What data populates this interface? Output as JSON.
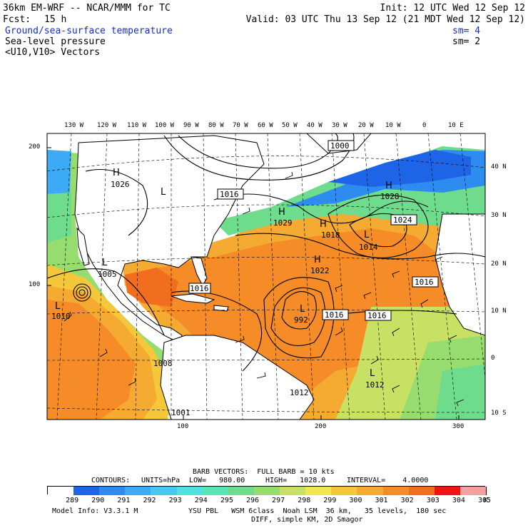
{
  "header": {
    "model": "36km EM-WRF -- NCAR/MMM for TC",
    "init": "Init: 12 UTC Wed 12 Sep 12",
    "fcst_label": "Fcst:",
    "fcst_value": "15 h",
    "valid": "Valid: 03 UTC Thu 13 Sep 12 (21 MDT Wed 12 Sep 12)",
    "fields": [
      {
        "label": "Ground/sea-surface temperature",
        "sm": "sm= 4",
        "color": "#1a2fb0"
      },
      {
        "label": "Sea-level pressure",
        "sm": "sm= 2",
        "color": "#000000"
      },
      {
        "label": "<U10,V10> Vectors",
        "sm": "",
        "color": "#000000"
      }
    ]
  },
  "map": {
    "top_lon_labels": [
      "130 W",
      "120 W",
      "110 W",
      "100 W",
      "90 W",
      "80 W",
      "70 W",
      "60 W",
      "50 W",
      "40 W",
      "30 W",
      "20 W",
      "10 W",
      "0",
      "10 E"
    ],
    "right_lat_labels": [
      "40 N",
      "30 N",
      "20 N",
      "10 N",
      "0",
      "10 S"
    ],
    "left_grid_labels": [
      "200",
      "100"
    ],
    "bottom_grid_labels": [
      "100",
      "200",
      "300"
    ],
    "pressure_boxes": [
      "1000",
      "1016",
      "1024",
      "1016",
      "1016",
      "1016",
      "1016"
    ],
    "pressure_labels": [
      "1026",
      "1029",
      "1018",
      "1014",
      "1028",
      "1022",
      "1005",
      "1010",
      "1008",
      "1012",
      "1012",
      "1001",
      "992"
    ],
    "centers": [
      {
        "type": "H"
      },
      {
        "type": "H"
      },
      {
        "type": "H"
      },
      {
        "type": "H"
      },
      {
        "type": "H"
      },
      {
        "type": "L"
      },
      {
        "type": "L"
      },
      {
        "type": "L"
      },
      {
        "type": "L"
      },
      {
        "type": "L"
      },
      {
        "type": "L"
      }
    ]
  },
  "legend": {
    "barb_line": "BARB VECTORS:  FULL BARB = 10 kts",
    "contours_label": "CONTOURS:",
    "units": "UNITS=hPa",
    "low": "LOW=   980.00",
    "high": "HIGH=   1028.0",
    "interval": "INTERVAL=    4.0000",
    "colorbar": {
      "values": [
        "289",
        "290",
        "291",
        "292",
        "293",
        "294",
        "295",
        "296",
        "297",
        "298",
        "299",
        "300",
        "301",
        "302",
        "303",
        "304",
        "305"
      ],
      "unit": "K",
      "colors": [
        "#ffffff",
        "#1e64e6",
        "#2e8cf0",
        "#3caaf5",
        "#46c8f0",
        "#50e1e1",
        "#5ae6b4",
        "#6edc8c",
        "#96dc6e",
        "#c8e164",
        "#f0e650",
        "#f5c83c",
        "#f5aa32",
        "#f58c28",
        "#f06e1e",
        "#f01414",
        "#f5a0a0"
      ]
    },
    "model_info": "Model Info: V3.3.1 M",
    "physics": "YSU PBL   WSM 6class  Noah LSM  36 km,   35 levels,  180 sec",
    "diff": "DIFF, simple KM, 2D Smagor"
  }
}
